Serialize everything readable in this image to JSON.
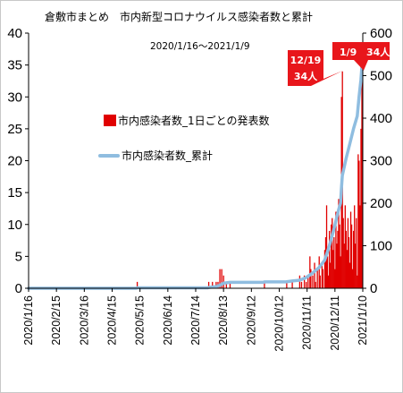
{
  "chart_data": {
    "type": "bar+line",
    "title": "倉敷市まとめ　市内新型コロナウイルス感染者数と累計",
    "subtitle": "2020/1/16～2021/1/9",
    "y_left": {
      "min": 0,
      "max": 40,
      "ticks": [
        "0",
        "5",
        "10",
        "15",
        "20",
        "25",
        "30",
        "35",
        "40"
      ]
    },
    "y_right": {
      "min": 0,
      "max": 600,
      "ticks": [
        "0",
        "100",
        "200",
        "300",
        "400",
        "500",
        "600"
      ]
    },
    "x_range": [
      "2020-01-16",
      "2021-01-10"
    ],
    "x_ticks": [
      "2020/1/16",
      "2020/2/15",
      "2020/3/16",
      "2020/4/15",
      "2020/5/15",
      "2020/6/14",
      "2020/7/14",
      "2020/8/13",
      "2020/9/12",
      "2020/10/12",
      "2020/11/11",
      "2020/12/11",
      "2021/1/10"
    ],
    "legend": [
      {
        "label": "市内感染者数_1日ごとの発表数",
        "color": "#e00000",
        "kind": "bar"
      },
      {
        "label": "市内感染者数_累計",
        "color": "#8fbde0",
        "kind": "line"
      }
    ],
    "series": [
      {
        "name": "市内感染者数_1日ごとの発表数",
        "axis": "left",
        "points": [
          [
            "2020-05-12",
            1
          ],
          [
            "2020-07-28",
            1
          ],
          [
            "2020-08-01",
            1
          ],
          [
            "2020-08-05",
            1
          ],
          [
            "2020-08-07",
            1
          ],
          [
            "2020-08-09",
            3
          ],
          [
            "2020-08-11",
            3
          ],
          [
            "2020-08-13",
            2
          ],
          [
            "2020-08-16",
            1
          ],
          [
            "2020-08-20",
            1
          ],
          [
            "2020-09-26",
            1
          ],
          [
            "2020-10-20",
            1
          ],
          [
            "2020-10-26",
            1
          ],
          [
            "2020-11-03",
            2
          ],
          [
            "2020-11-05",
            1
          ],
          [
            "2020-11-08",
            2
          ],
          [
            "2020-11-10",
            1
          ],
          [
            "2020-11-12",
            2
          ],
          [
            "2020-11-14",
            5
          ],
          [
            "2020-11-15",
            3
          ],
          [
            "2020-11-17",
            2
          ],
          [
            "2020-11-19",
            4
          ],
          [
            "2020-11-20",
            1
          ],
          [
            "2020-11-22",
            3
          ],
          [
            "2020-11-24",
            5
          ],
          [
            "2020-11-25",
            2
          ],
          [
            "2020-11-27",
            4
          ],
          [
            "2020-11-28",
            3
          ],
          [
            "2020-11-30",
            6
          ],
          [
            "2020-12-01",
            8
          ],
          [
            "2020-12-02",
            13
          ],
          [
            "2020-12-03",
            5
          ],
          [
            "2020-12-04",
            2
          ],
          [
            "2020-12-05",
            9
          ],
          [
            "2020-12-06",
            4
          ],
          [
            "2020-12-07",
            10
          ],
          [
            "2020-12-08",
            11
          ],
          [
            "2020-12-09",
            6
          ],
          [
            "2020-12-10",
            8
          ],
          [
            "2020-12-11",
            3
          ],
          [
            "2020-12-12",
            12
          ],
          [
            "2020-12-13",
            7
          ],
          [
            "2020-12-14",
            9
          ],
          [
            "2020-12-15",
            14
          ],
          [
            "2020-12-16",
            10
          ],
          [
            "2020-12-17",
            5
          ],
          [
            "2020-12-18",
            30
          ],
          [
            "2020-12-19",
            34
          ],
          [
            "2020-12-20",
            11
          ],
          [
            "2020-12-21",
            7
          ],
          [
            "2020-12-22",
            13
          ],
          [
            "2020-12-23",
            9
          ],
          [
            "2020-12-24",
            6
          ],
          [
            "2020-12-25",
            11
          ],
          [
            "2020-12-26",
            8
          ],
          [
            "2020-12-27",
            4
          ],
          [
            "2020-12-28",
            12
          ],
          [
            "2020-12-29",
            10
          ],
          [
            "2020-12-30",
            3
          ],
          [
            "2020-12-31",
            9
          ],
          [
            "2021-01-01",
            13
          ],
          [
            "2021-01-02",
            7
          ],
          [
            "2021-01-03",
            11
          ],
          [
            "2021-01-04",
            2
          ],
          [
            "2021-01-05",
            21
          ],
          [
            "2021-01-06",
            20
          ],
          [
            "2021-01-07",
            13
          ],
          [
            "2021-01-08",
            25
          ],
          [
            "2021-01-09",
            34
          ]
        ]
      },
      {
        "name": "市内感染者数_累計",
        "axis": "right",
        "points": [
          [
            "2020-01-16",
            0
          ],
          [
            "2020-05-11",
            0
          ],
          [
            "2020-05-12",
            1
          ],
          [
            "2020-07-27",
            1
          ],
          [
            "2020-07-28",
            2
          ],
          [
            "2020-08-05",
            4
          ],
          [
            "2020-08-09",
            7
          ],
          [
            "2020-08-13",
            12
          ],
          [
            "2020-08-20",
            14
          ],
          [
            "2020-09-25",
            14
          ],
          [
            "2020-09-26",
            15
          ],
          [
            "2020-10-19",
            15
          ],
          [
            "2020-10-26",
            17
          ],
          [
            "2020-11-03",
            19
          ],
          [
            "2020-11-10",
            25
          ],
          [
            "2020-11-17",
            36
          ],
          [
            "2020-11-24",
            49
          ],
          [
            "2020-11-30",
            66
          ],
          [
            "2020-12-05",
            100
          ],
          [
            "2020-12-10",
            140
          ],
          [
            "2020-12-15",
            185
          ],
          [
            "2020-12-17",
            200
          ],
          [
            "2020-12-18",
            235
          ],
          [
            "2020-12-19",
            265
          ],
          [
            "2020-12-23",
            305
          ],
          [
            "2020-12-27",
            340
          ],
          [
            "2020-12-31",
            375
          ],
          [
            "2021-01-04",
            405
          ],
          [
            "2021-01-06",
            450
          ],
          [
            "2021-01-08",
            490
          ],
          [
            "2021-01-09",
            521
          ]
        ]
      }
    ],
    "callouts": [
      {
        "date": "2020-12-19",
        "lines": [
          "12/19",
          "34人"
        ],
        "color": "#e8161b"
      },
      {
        "date": "2021-01-09",
        "lines": [
          "1/9",
          "34人"
        ],
        "color": "#e8161b"
      }
    ]
  }
}
